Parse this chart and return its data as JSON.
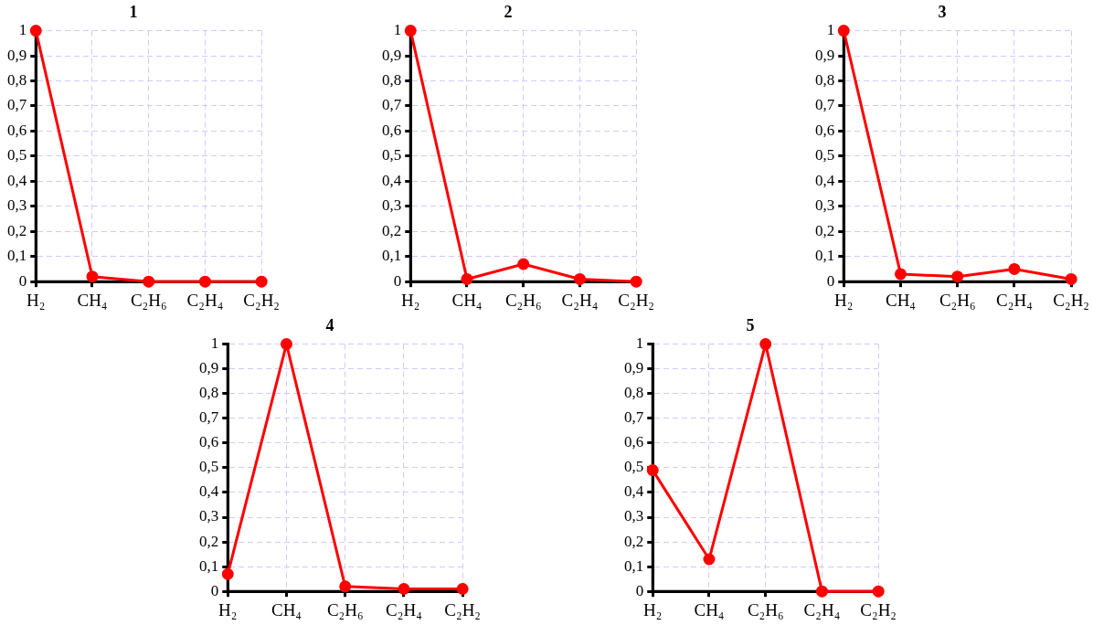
{
  "chart_data": [
    {
      "type": "line",
      "title": "1",
      "categories": [
        "H₂",
        "CH₄",
        "C₂H₆",
        "C₂H₄",
        "C₂H₂"
      ],
      "series": [
        {
          "color": "#ff0000",
          "values": [
            1,
            0.02,
            0,
            0,
            0
          ]
        }
      ],
      "ylim": [
        0,
        1
      ],
      "yticks": [
        {
          "value": 0,
          "label": "0"
        },
        {
          "value": 0.1,
          "label": "0,1"
        },
        {
          "value": 0.2,
          "label": "0,2"
        },
        {
          "value": 0.3,
          "label": "0,3"
        },
        {
          "value": 0.4,
          "label": "0,4"
        },
        {
          "value": 0.5,
          "label": "0,5"
        },
        {
          "value": 0.6,
          "label": "0,6"
        },
        {
          "value": 0.7,
          "label": "0,7"
        },
        {
          "value": 0.8,
          "label": "0,8"
        },
        {
          "value": 0.9,
          "label": "0,9"
        },
        {
          "value": 1,
          "label": "1"
        }
      ],
      "grid": true,
      "marker": "circle",
      "line_style": "solid"
    },
    {
      "type": "line",
      "title": "2",
      "categories": [
        "H₂",
        "CH₄",
        "C₂H₆",
        "C₂H₄",
        "C₂H₂"
      ],
      "series": [
        {
          "color": "#ff0000",
          "values": [
            1,
            0.01,
            0.07,
            0.01,
            0
          ]
        }
      ],
      "ylim": [
        0,
        1
      ],
      "yticks": [
        {
          "value": 0,
          "label": "0"
        },
        {
          "value": 0.1,
          "label": "0,1"
        },
        {
          "value": 0.2,
          "label": "0,2"
        },
        {
          "value": 0.3,
          "label": "0,3"
        },
        {
          "value": 0.4,
          "label": "0,4"
        },
        {
          "value": 0.5,
          "label": "0,5"
        },
        {
          "value": 0.6,
          "label": "0,6"
        },
        {
          "value": 0.7,
          "label": "0,7"
        },
        {
          "value": 0.8,
          "label": "0,8"
        },
        {
          "value": 0.9,
          "label": "0,9"
        },
        {
          "value": 1,
          "label": "1"
        }
      ],
      "grid": true,
      "marker": "circle",
      "line_style": "solid"
    },
    {
      "type": "line",
      "title": "3",
      "categories": [
        "H₂",
        "CH₄",
        "C₂H₆",
        "C₂H₄",
        "C₂H₂"
      ],
      "series": [
        {
          "color": "#ff0000",
          "values": [
            1,
            0.03,
            0.02,
            0.05,
            0.01
          ]
        }
      ],
      "ylim": [
        0,
        1
      ],
      "yticks": [
        {
          "value": 0,
          "label": "0"
        },
        {
          "value": 0.1,
          "label": "0,1"
        },
        {
          "value": 0.2,
          "label": "0,2"
        },
        {
          "value": 0.3,
          "label": "0,3"
        },
        {
          "value": 0.4,
          "label": "0,4"
        },
        {
          "value": 0.5,
          "label": "0,5"
        },
        {
          "value": 0.6,
          "label": "0,6"
        },
        {
          "value": 0.7,
          "label": "0,7"
        },
        {
          "value": 0.8,
          "label": "0,8"
        },
        {
          "value": 0.9,
          "label": "0,9"
        },
        {
          "value": 1,
          "label": "1"
        }
      ],
      "grid": true,
      "marker": "circle",
      "line_style": "solid"
    },
    {
      "type": "line",
      "title": "4",
      "categories": [
        "H₂",
        "CH₄",
        "C₂H₆",
        "C₂H₄",
        "C₂H₂"
      ],
      "series": [
        {
          "color": "#ff0000",
          "values": [
            0.07,
            1,
            0.02,
            0.01,
            0.01
          ]
        }
      ],
      "ylim": [
        0,
        1
      ],
      "yticks": [
        {
          "value": 0,
          "label": "0"
        },
        {
          "value": 0.1,
          "label": "0,1"
        },
        {
          "value": 0.2,
          "label": "0,2"
        },
        {
          "value": 0.3,
          "label": "0,3"
        },
        {
          "value": 0.4,
          "label": "0,4"
        },
        {
          "value": 0.5,
          "label": "0,5"
        },
        {
          "value": 0.6,
          "label": "0,6"
        },
        {
          "value": 0.7,
          "label": "0,7"
        },
        {
          "value": 0.8,
          "label": "0,8"
        },
        {
          "value": 0.9,
          "label": "0,9"
        },
        {
          "value": 1,
          "label": "1"
        }
      ],
      "grid": true,
      "marker": "circle",
      "line_style": "solid"
    },
    {
      "type": "line",
      "title": "5",
      "categories": [
        "H₂",
        "CH₄",
        "C₂H₆",
        "C₂H₄",
        "C₂H₂"
      ],
      "series": [
        {
          "color": "#ff0000",
          "values": [
            0.49,
            0.13,
            1,
            0,
            0
          ]
        }
      ],
      "ylim": [
        0,
        1
      ],
      "yticks": [
        {
          "value": 0,
          "label": "0"
        },
        {
          "value": 0.1,
          "label": "0,1"
        },
        {
          "value": 0.2,
          "label": "0,2"
        },
        {
          "value": 0.3,
          "label": "0,3"
        },
        {
          "value": 0.4,
          "label": "0,4"
        },
        {
          "value": 0.5,
          "label": "0,5"
        },
        {
          "value": 0.6,
          "label": "0,6"
        },
        {
          "value": 0.7,
          "label": "0,7"
        },
        {
          "value": 0.8,
          "label": "0,8"
        },
        {
          "value": 0.9,
          "label": "0,9"
        },
        {
          "value": 1,
          "label": "1"
        }
      ],
      "grid": true,
      "marker": "circle",
      "line_style": "solid"
    }
  ]
}
